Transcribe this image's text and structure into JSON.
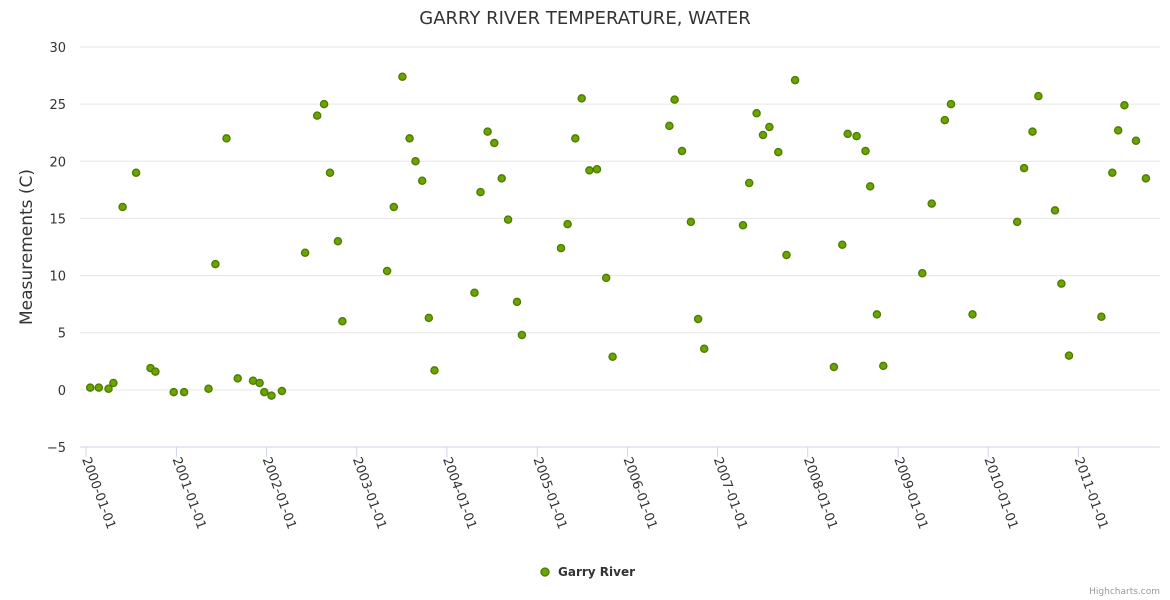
{
  "chart_data": {
    "type": "scatter",
    "title": "GARRY RIVER TEMPERATURE, WATER",
    "xlabel": "",
    "ylabel": "Measurements (C)",
    "ylim": [
      -5,
      30
    ],
    "yticks": [
      -5,
      0,
      5,
      10,
      15,
      20,
      25,
      30
    ],
    "xlim": [
      "2000-01-01",
      "2011-10-25"
    ],
    "xticks": [
      "2000-01-01",
      "2001-01-01",
      "2002-01-01",
      "2003-01-01",
      "2004-01-01",
      "2005-01-01",
      "2006-01-01",
      "2007-01-01",
      "2008-01-01",
      "2009-01-01",
      "2010-01-01",
      "2011-01-01"
    ],
    "grid": {
      "horizontal": true,
      "vertical": false
    },
    "legend": "bottom-center",
    "series": [
      {
        "name": "Garry River",
        "color": "#6aa400",
        "stroke": "#4d7a00",
        "points": [
          [
            "2000-01-18",
            0.2
          ],
          [
            "2000-02-22",
            0.2
          ],
          [
            "2000-04-01",
            0.1
          ],
          [
            "2000-04-21",
            0.6
          ],
          [
            "2000-05-28",
            16.0
          ],
          [
            "2000-07-22",
            19.0
          ],
          [
            "2000-09-18",
            1.9
          ],
          [
            "2000-10-08",
            1.6
          ],
          [
            "2000-12-21",
            -0.2
          ],
          [
            "2001-02-01",
            -0.2
          ],
          [
            "2001-05-11",
            0.1
          ],
          [
            "2001-06-08",
            11.0
          ],
          [
            "2001-07-23",
            22.0
          ],
          [
            "2001-09-06",
            1.0
          ],
          [
            "2001-11-07",
            0.8
          ],
          [
            "2001-12-04",
            0.6
          ],
          [
            "2001-12-23",
            -0.2
          ],
          [
            "2002-01-21",
            -0.5
          ],
          [
            "2002-03-04",
            -0.1
          ],
          [
            "2002-06-06",
            12.0
          ],
          [
            "2002-07-25",
            24.0
          ],
          [
            "2002-08-22",
            25.0
          ],
          [
            "2002-09-15",
            19.0
          ],
          [
            "2002-10-17",
            13.0
          ],
          [
            "2002-11-04",
            6.0
          ],
          [
            "2003-05-04",
            10.4
          ],
          [
            "2003-05-31",
            16.0
          ],
          [
            "2003-07-05",
            27.4
          ],
          [
            "2003-08-03",
            22.0
          ],
          [
            "2003-08-27",
            20.0
          ],
          [
            "2003-09-23",
            18.3
          ],
          [
            "2003-10-20",
            6.3
          ],
          [
            "2003-11-12",
            1.7
          ],
          [
            "2004-04-22",
            8.5
          ],
          [
            "2004-05-16",
            17.3
          ],
          [
            "2004-06-14",
            22.6
          ],
          [
            "2004-07-11",
            21.6
          ],
          [
            "2004-08-10",
            18.5
          ],
          [
            "2004-09-05",
            14.9
          ],
          [
            "2004-10-11",
            7.7
          ],
          [
            "2004-10-31",
            4.8
          ],
          [
            "2005-04-07",
            12.4
          ],
          [
            "2005-05-04",
            14.5
          ],
          [
            "2005-06-04",
            22.0
          ],
          [
            "2005-06-30",
            25.5
          ],
          [
            "2005-07-31",
            19.2
          ],
          [
            "2005-08-31",
            19.3
          ],
          [
            "2005-10-07",
            9.8
          ],
          [
            "2005-11-02",
            2.9
          ],
          [
            "2006-06-20",
            23.1
          ],
          [
            "2006-07-11",
            25.4
          ],
          [
            "2006-08-10",
            20.9
          ],
          [
            "2006-09-15",
            14.7
          ],
          [
            "2006-10-14",
            6.2
          ],
          [
            "2006-11-08",
            3.6
          ],
          [
            "2007-04-14",
            14.4
          ],
          [
            "2007-05-09",
            18.1
          ],
          [
            "2007-06-08",
            24.2
          ],
          [
            "2007-07-04",
            22.3
          ],
          [
            "2007-07-30",
            23.0
          ],
          [
            "2007-09-04",
            20.8
          ],
          [
            "2007-10-07",
            11.8
          ],
          [
            "2007-11-11",
            27.1
          ],
          [
            "2008-04-16",
            2.0
          ],
          [
            "2008-05-20",
            12.7
          ],
          [
            "2008-06-11",
            22.4
          ],
          [
            "2008-07-17",
            22.2
          ],
          [
            "2008-08-22",
            20.9
          ],
          [
            "2008-09-10",
            17.8
          ],
          [
            "2008-10-07",
            6.6
          ],
          [
            "2008-11-02",
            2.1
          ],
          [
            "2009-04-09",
            10.2
          ],
          [
            "2009-05-17",
            16.3
          ],
          [
            "2009-07-09",
            23.6
          ],
          [
            "2009-08-03",
            25.0
          ],
          [
            "2009-10-29",
            6.6
          ],
          [
            "2010-04-28",
            14.7
          ],
          [
            "2010-05-26",
            19.4
          ],
          [
            "2010-06-29",
            22.6
          ],
          [
            "2010-07-23",
            25.7
          ],
          [
            "2010-09-28",
            15.7
          ],
          [
            "2010-10-24",
            9.3
          ],
          [
            "2010-11-24",
            3.0
          ],
          [
            "2011-04-04",
            6.4
          ],
          [
            "2011-05-18",
            19.0
          ],
          [
            "2011-06-11",
            22.7
          ],
          [
            "2011-07-06",
            24.9
          ],
          [
            "2011-08-22",
            21.8
          ],
          [
            "2011-10-01",
            18.5
          ]
        ]
      }
    ]
  },
  "credits": "Highcharts.com"
}
